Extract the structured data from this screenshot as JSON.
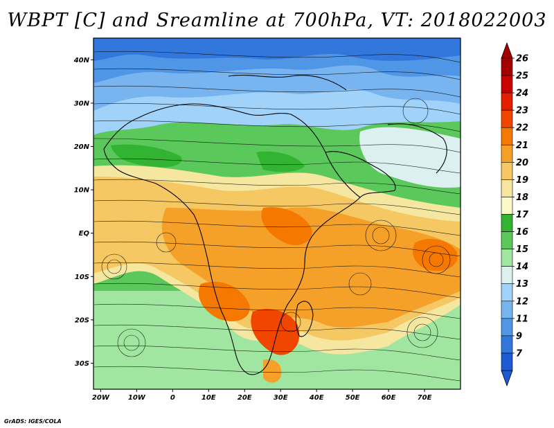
{
  "title": "WBPT [C] and Sreamline at 700hPa, VT: 2018022003",
  "credit": "GrADS: IGES/COLA",
  "map": {
    "lon_range": [
      -22,
      80
    ],
    "lat_range": [
      -36,
      45
    ],
    "lon_ticks": [
      {
        "v": -20,
        "label": "20W"
      },
      {
        "v": -10,
        "label": "10W"
      },
      {
        "v": 0,
        "label": "0"
      },
      {
        "v": 10,
        "label": "10E"
      },
      {
        "v": 20,
        "label": "20E"
      },
      {
        "v": 30,
        "label": "30E"
      },
      {
        "v": 40,
        "label": "40E"
      },
      {
        "v": 50,
        "label": "50E"
      },
      {
        "v": 60,
        "label": "60E"
      },
      {
        "v": 70,
        "label": "70E"
      }
    ],
    "lat_ticks": [
      {
        "v": 40,
        "label": "40N"
      },
      {
        "v": 30,
        "label": "30N"
      },
      {
        "v": 20,
        "label": "20N"
      },
      {
        "v": 10,
        "label": "10N"
      },
      {
        "v": 0,
        "label": "EQ"
      },
      {
        "v": -10,
        "label": "10S"
      },
      {
        "v": -20,
        "label": "20S"
      },
      {
        "v": -30,
        "label": "30S"
      }
    ]
  },
  "colorbar": {
    "levels": [
      "26",
      "25",
      "24",
      "23",
      "22",
      "21",
      "20",
      "19",
      "18",
      "17",
      "16",
      "15",
      "14",
      "13",
      "12",
      "11",
      "9",
      "7"
    ],
    "colors": [
      "#a50000",
      "#c80000",
      "#e61e00",
      "#f04600",
      "#f57800",
      "#f5a028",
      "#f5c864",
      "#f5e6a0",
      "#fafac8",
      "#32b432",
      "#5ac85a",
      "#a0e6a0",
      "#dcf0f0",
      "#a0d2fa",
      "#78b4f0",
      "#5096e6",
      "#3278dc",
      "#1e5ad2"
    ]
  }
}
